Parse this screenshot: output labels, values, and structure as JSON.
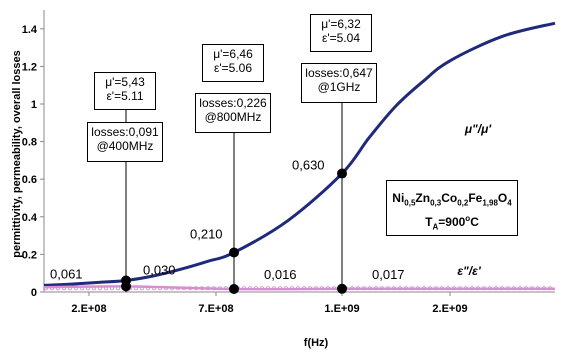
{
  "chart_data": {
    "type": "line",
    "xlabel": "f(Hz)",
    "ylabel": "permittivity, permeability, overall losses",
    "x_ticks": [
      "2.E+08",
      "7.E+08",
      "1.E+09",
      "2.E+09"
    ],
    "y_ticks": [
      "0",
      "0.2",
      "0.4",
      "0.6",
      "0.8",
      "1",
      "1.2",
      "1.4"
    ],
    "ylim": [
      0,
      1.5
    ],
    "xlim": [
      100000000.0,
      3000000000.0
    ],
    "grid": false,
    "series": [
      {
        "name": "μ\"/μ'",
        "color": "#1f2a7a",
        "x": [
          100000000.0,
          200000000.0,
          300000000.0,
          400000000.0,
          500000000.0,
          600000000.0,
          700000000.0,
          800000000.0,
          900000000.0,
          1000000000.0,
          1250000000.0,
          1500000000.0,
          1750000000.0,
          2000000000.0,
          2500000000.0,
          3000000000.0
        ],
        "y": [
          0.035,
          0.042,
          0.051,
          0.061,
          0.085,
          0.12,
          0.162,
          0.21,
          0.38,
          0.63,
          0.82,
          0.99,
          1.12,
          1.23,
          1.36,
          1.43
        ]
      },
      {
        "name": "ε\"/ε'",
        "color": "#d68fd0",
        "x": [
          100000000.0,
          400000000.0,
          800000000.0,
          1000000000.0,
          2000000000.0,
          3000000000.0
        ],
        "y": [
          0.025,
          0.03,
          0.016,
          0.017,
          0.017,
          0.017
        ]
      }
    ],
    "highlight_points": [
      {
        "x": 400000000.0,
        "y": 0.061,
        "label": "0,061"
      },
      {
        "x": 400000000.0,
        "y": 0.03,
        "label": "0,030"
      },
      {
        "x": 800000000.0,
        "y": 0.21,
        "label": "0,210"
      },
      {
        "x": 800000000.0,
        "y": 0.016,
        "label": "0,016"
      },
      {
        "x": 1000000000.0,
        "y": 0.63,
        "label": "0,630"
      },
      {
        "x": 1000000000.0,
        "y": 0.017,
        "label": "0,017"
      }
    ],
    "annotations": [
      {
        "mu": "μ'=5,43",
        "eps": "ε'=5.11",
        "losses": "losses:0,091",
        "freq": "@400MHz"
      },
      {
        "mu": "μ'=6,46",
        "eps": "ε'=5.06",
        "losses": "losses:0,226",
        "freq": "@800MHz"
      },
      {
        "mu": "μ'=6,32",
        "eps": "ε'=5.04",
        "losses": "losses:0,647",
        "freq": "@1GHz"
      }
    ],
    "composition": {
      "formula_parts": [
        "Ni",
        "0,5",
        "Zn",
        "0,3",
        "Co",
        "0,2",
        "Fe",
        "1,98",
        "O",
        "4"
      ],
      "temp_prefix": "T",
      "temp_sub": "A",
      "temp_value": "=900",
      "temp_deg": "o",
      "temp_unit": "C"
    }
  }
}
